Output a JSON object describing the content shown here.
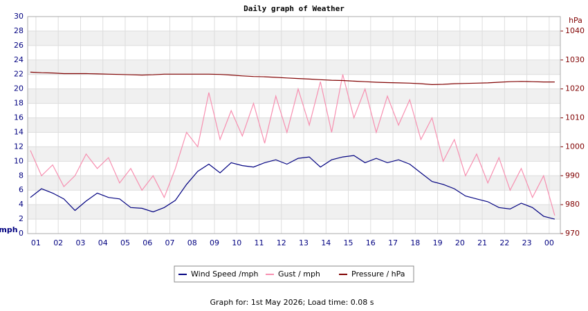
{
  "chart_data": {
    "type": "line",
    "title": "Daily graph of Weather",
    "y_label": "mph",
    "y2_label": "hPa",
    "footer": "Graph for: 1st May 2026; Load time: 0.08 s",
    "grid": "banded",
    "legend": "bottom",
    "x": [
      0.75,
      1.25,
      1.75,
      2.25,
      2.75,
      3.25,
      3.75,
      4.25,
      4.75,
      5.25,
      5.75,
      6.25,
      6.75,
      7.25,
      7.75,
      8.25,
      8.75,
      9.25,
      9.75,
      10.25,
      10.75,
      11.25,
      11.75,
      12.25,
      12.75,
      13.25,
      13.75,
      14.25,
      14.75,
      15.25,
      15.75,
      16.25,
      16.75,
      17.25,
      17.75,
      18.25,
      18.75,
      19.25,
      19.75,
      20.25,
      20.75,
      21.25,
      21.75,
      22.25,
      22.75,
      23.25,
      23.75,
      24.25
    ],
    "xlim": [
      0.63,
      24.5
    ],
    "xticks": [
      {
        "value": 1,
        "label": "01"
      },
      {
        "value": 2,
        "label": "02"
      },
      {
        "value": 3,
        "label": "03"
      },
      {
        "value": 4,
        "label": "04"
      },
      {
        "value": 5,
        "label": "05"
      },
      {
        "value": 6,
        "label": "06"
      },
      {
        "value": 7,
        "label": "07"
      },
      {
        "value": 8,
        "label": "08"
      },
      {
        "value": 9,
        "label": "09"
      },
      {
        "value": 10,
        "label": "10"
      },
      {
        "value": 11,
        "label": "11"
      },
      {
        "value": 12,
        "label": "12"
      },
      {
        "value": 13,
        "label": "13"
      },
      {
        "value": 14,
        "label": "14"
      },
      {
        "value": 15,
        "label": "15"
      },
      {
        "value": 16,
        "label": "16"
      },
      {
        "value": 17,
        "label": "17"
      },
      {
        "value": 18,
        "label": "18"
      },
      {
        "value": 19,
        "label": "19"
      },
      {
        "value": 20,
        "label": "20"
      },
      {
        "value": 21,
        "label": "21"
      },
      {
        "value": 22,
        "label": "22"
      },
      {
        "value": 23,
        "label": "23"
      },
      {
        "value": 24,
        "label": "00"
      }
    ],
    "ylim": [
      0,
      30
    ],
    "yticks": [
      0,
      2,
      4,
      6,
      8,
      10,
      12,
      14,
      16,
      18,
      20,
      22,
      24,
      26,
      28,
      30
    ],
    "y2lim": [
      970,
      1045
    ],
    "y2ticks": [
      970,
      980,
      990,
      1000,
      1010,
      1020,
      1030,
      1040
    ],
    "series": [
      {
        "name": "Wind Speed /mph",
        "color": "#000080",
        "values": [
          5,
          6.2,
          5.6,
          4.8,
          3.2,
          4.5,
          5.6,
          5,
          4.8,
          3.6,
          3.5,
          3,
          3.6,
          4.6,
          6.8,
          8.6,
          9.6,
          8.4,
          9.8,
          9.4,
          9.2,
          9.8,
          10.2,
          9.6,
          10.4,
          10.6,
          9.2,
          10.2,
          10.6,
          10.8,
          9.8,
          10.4,
          9.8,
          10.2,
          9.6,
          8.4,
          7.2,
          6.8,
          6.2,
          5.2,
          4.8,
          4.4,
          3.6,
          3.4,
          4.2,
          3.6,
          2.4,
          2
        ]
      },
      {
        "name": "Gust / mph",
        "color": "#f78fb0",
        "values": [
          11.5,
          8,
          9.5,
          6.5,
          8,
          11,
          9,
          10.5,
          7,
          9,
          6,
          8,
          5,
          9,
          14,
          12,
          19.5,
          13,
          17,
          13.5,
          18,
          12.5,
          19,
          14,
          20,
          15,
          21,
          14,
          22,
          16,
          20,
          14,
          19,
          15,
          18.5,
          13,
          16,
          10,
          13,
          8,
          11,
          7,
          10.5,
          6,
          9,
          5,
          8,
          2.5
        ]
      },
      {
        "name": "Pressure / hPa",
        "color": "#800000",
        "axis": "y2",
        "values": [
          1025.8,
          1025.6,
          1025.5,
          1025.3,
          1025.3,
          1025.3,
          1025.2,
          1025.1,
          1025,
          1024.9,
          1024.8,
          1024.9,
          1025.1,
          1025.1,
          1025.1,
          1025.1,
          1025.1,
          1025,
          1024.8,
          1024.5,
          1024.3,
          1024.2,
          1024,
          1023.8,
          1023.6,
          1023.4,
          1023.2,
          1023,
          1022.9,
          1022.7,
          1022.5,
          1022.3,
          1022.2,
          1022.1,
          1022,
          1021.8,
          1021.5,
          1021.6,
          1021.8,
          1021.9,
          1022,
          1022.1,
          1022.3,
          1022.5,
          1022.6,
          1022.5,
          1022.4,
          1022.4
        ]
      }
    ]
  }
}
